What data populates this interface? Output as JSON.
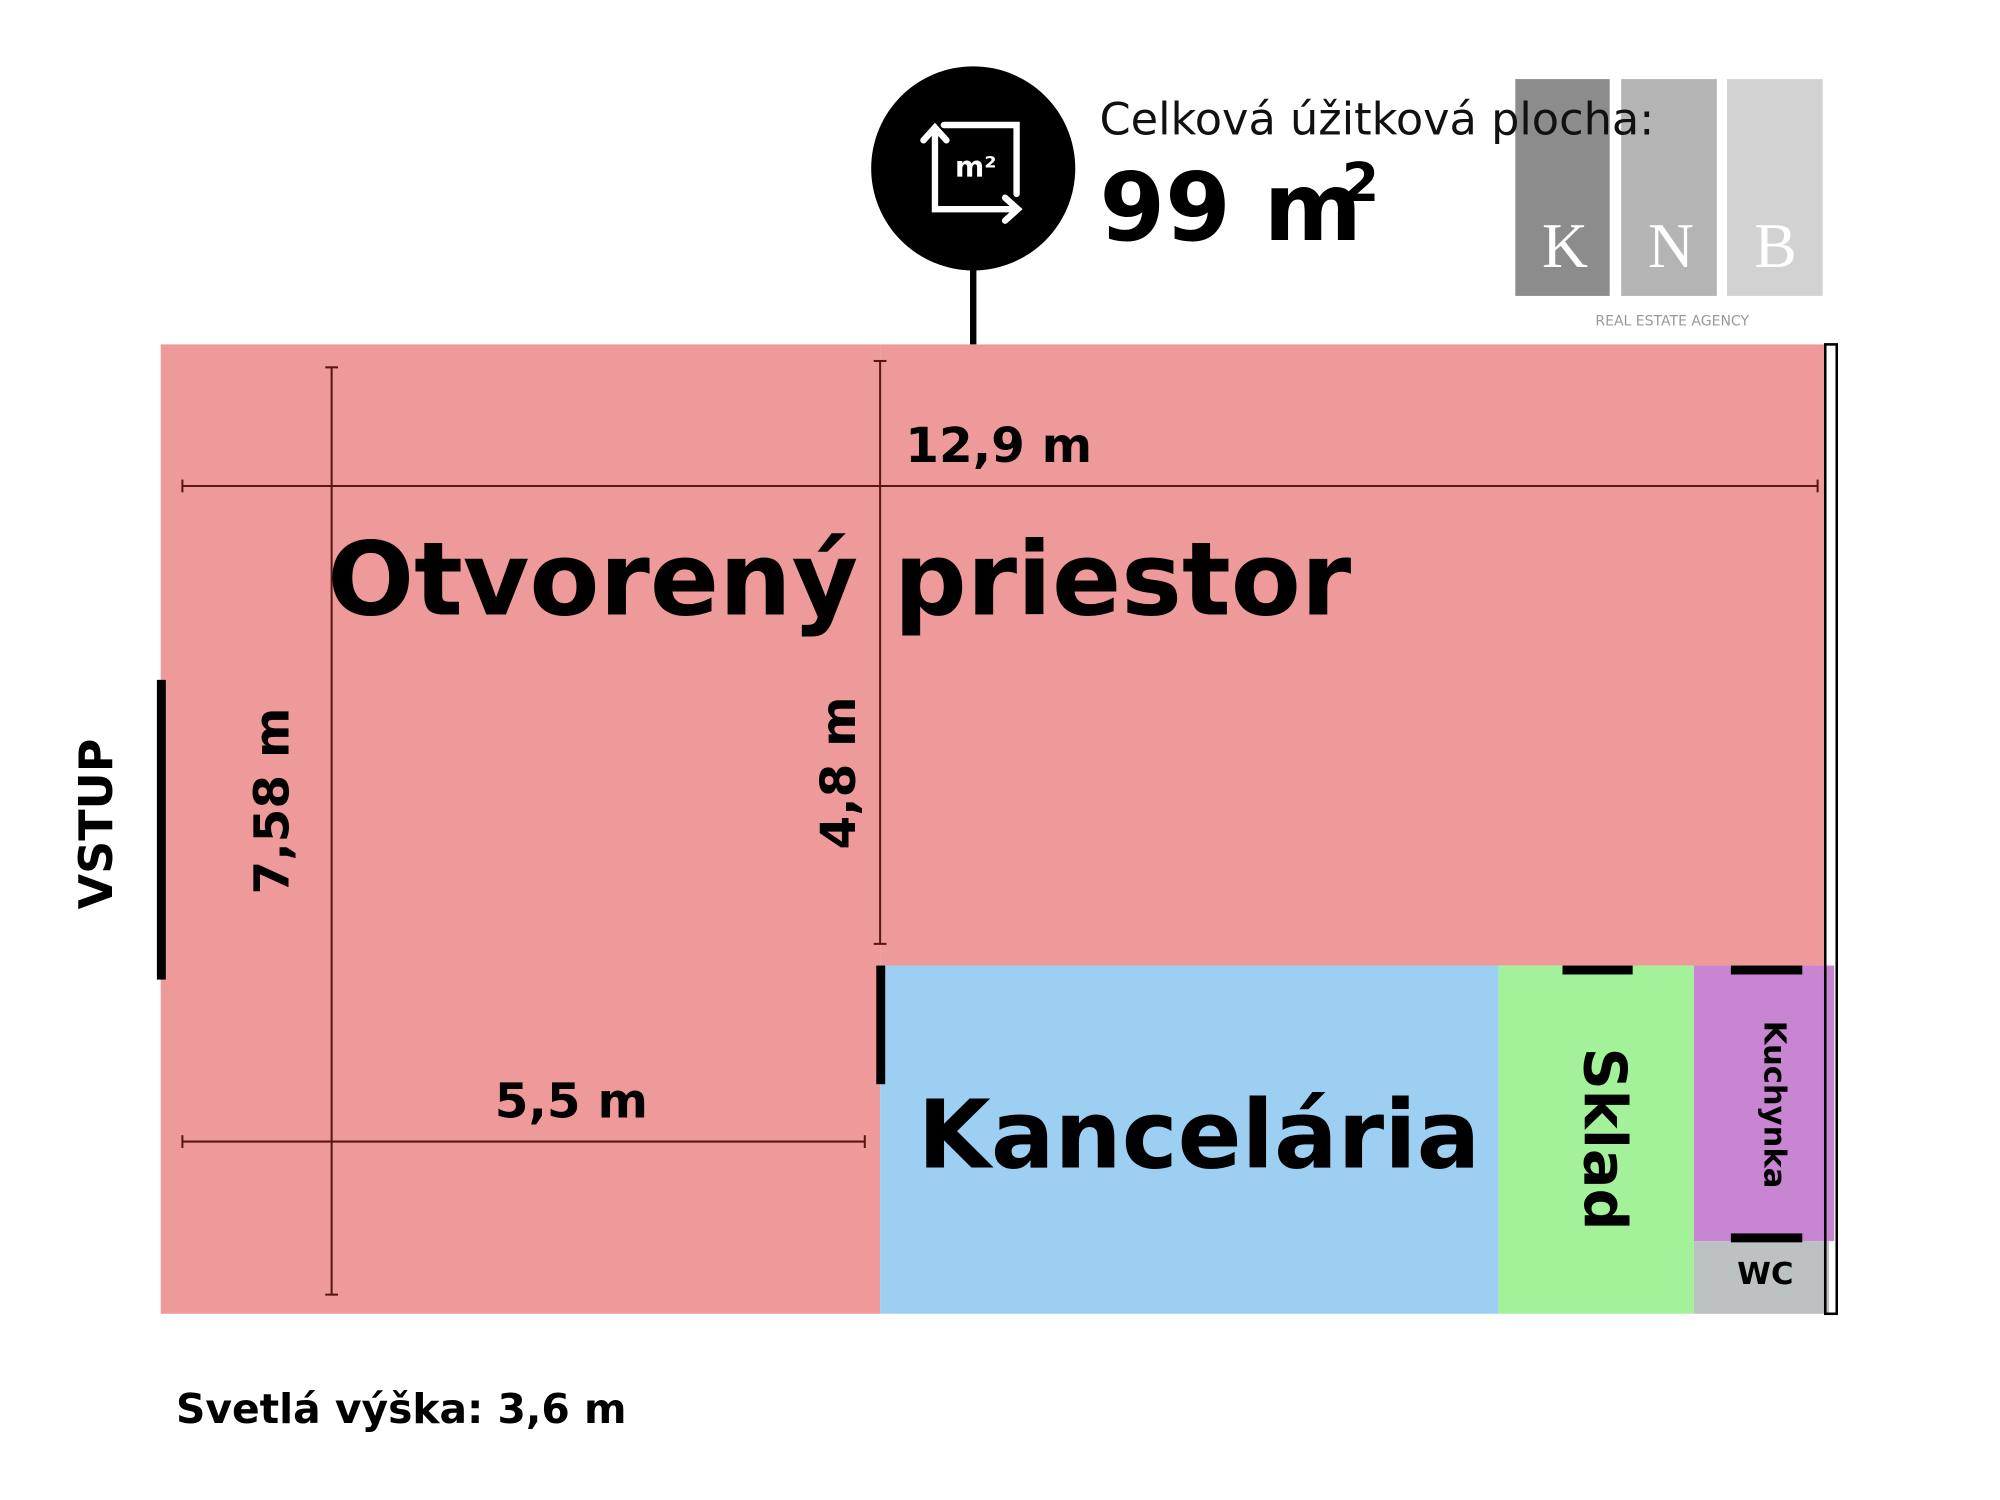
{
  "header": {
    "area_label": "Celková úžitková plocha:",
    "area_value": "99 m",
    "area_unit_sup": "2",
    "icon_label": "m²"
  },
  "logo": {
    "letters": [
      "K",
      "N",
      "B"
    ],
    "tagline": "REAL ESTATE AGENCY"
  },
  "rooms": {
    "open_space": "Otvorený priestor",
    "office": "Kancelária",
    "storage": "Sklad",
    "kitchen": "Kuchynka",
    "wc": "WC"
  },
  "dimensions": {
    "total_width": "12,9 m",
    "total_depth": "7,58 m",
    "open_depth": "4,8 m",
    "front_width": "5,5 m"
  },
  "entrance": "VSTUP",
  "footer": "Svetlá výška: 3,6 m"
}
